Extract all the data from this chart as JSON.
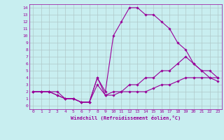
{
  "xlabel": "Windchill (Refroidissement éolien,°C)",
  "bg_color": "#c8eef0",
  "line_color": "#990099",
  "grid_color": "#b0c8c8",
  "xlim": [
    -0.5,
    23.5
  ],
  "ylim": [
    -0.5,
    14.5
  ],
  "xticks": [
    0,
    1,
    2,
    3,
    4,
    5,
    6,
    7,
    8,
    9,
    10,
    11,
    12,
    13,
    14,
    15,
    16,
    17,
    18,
    19,
    20,
    21,
    22,
    23
  ],
  "yticks": [
    0,
    1,
    2,
    3,
    4,
    5,
    6,
    7,
    8,
    9,
    10,
    11,
    12,
    13,
    14
  ],
  "lines": [
    {
      "x": [
        0,
        1,
        2,
        3,
        4,
        5,
        6,
        7,
        8,
        9,
        10,
        11,
        12,
        13,
        14,
        15,
        16,
        17,
        18,
        19,
        20,
        21,
        22,
        23
      ],
      "y": [
        2,
        2,
        2,
        2,
        1,
        1,
        0.5,
        0.5,
        4,
        2,
        10,
        12,
        14,
        14,
        13,
        13,
        12,
        11,
        9,
        8,
        6,
        5,
        4,
        4
      ]
    },
    {
      "x": [
        0,
        1,
        2,
        3,
        4,
        5,
        6,
        7,
        8,
        9,
        10,
        11,
        12,
        13,
        14,
        15,
        16,
        17,
        18,
        19,
        20,
        21,
        22,
        23
      ],
      "y": [
        2,
        2,
        2,
        1.5,
        1,
        1,
        0.5,
        0.5,
        4,
        1.5,
        2,
        2,
        3,
        3,
        4,
        4,
        5,
        5,
        6,
        7,
        6,
        5,
        5,
        4
      ]
    },
    {
      "x": [
        0,
        1,
        2,
        3,
        4,
        5,
        6,
        7,
        8,
        9,
        10,
        11,
        12,
        13,
        14,
        15,
        16,
        17,
        18,
        19,
        20,
        21,
        22,
        23
      ],
      "y": [
        2,
        2,
        2,
        1.5,
        1,
        1,
        0.5,
        0.5,
        3,
        1.5,
        1.5,
        2,
        2,
        2,
        2,
        2.5,
        3,
        3,
        3.5,
        4,
        4,
        4,
        4,
        3.5
      ]
    }
  ]
}
